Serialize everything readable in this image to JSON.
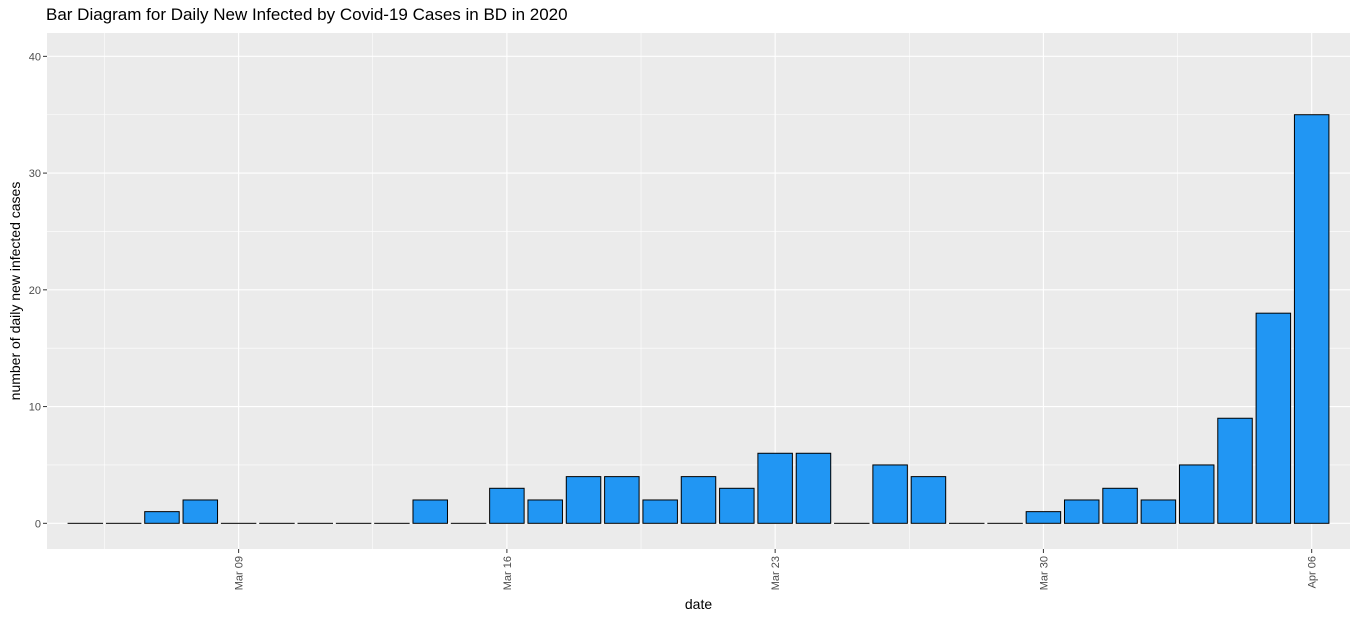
{
  "chart_data": {
    "type": "bar",
    "title": "Bar Diagram for Daily New Infected by Covid-19 Cases in BD in 2020",
    "xlabel": "date",
    "ylabel": "number of daily new infected cases",
    "x": [
      "2020-03-05",
      "2020-03-06",
      "2020-03-07",
      "2020-03-08",
      "2020-03-09",
      "2020-03-10",
      "2020-03-11",
      "2020-03-12",
      "2020-03-13",
      "2020-03-14",
      "2020-03-15",
      "2020-03-16",
      "2020-03-17",
      "2020-03-18",
      "2020-03-19",
      "2020-03-20",
      "2020-03-21",
      "2020-03-22",
      "2020-03-23",
      "2020-03-24",
      "2020-03-25",
      "2020-03-26",
      "2020-03-27",
      "2020-03-28",
      "2020-03-29",
      "2020-03-30",
      "2020-03-31",
      "2020-04-01",
      "2020-04-02",
      "2020-04-03",
      "2020-04-04",
      "2020-04-05",
      "2020-04-06"
    ],
    "values": [
      0,
      0,
      1,
      2,
      0,
      0,
      0,
      0,
      0,
      2,
      0,
      3,
      2,
      4,
      4,
      2,
      4,
      3,
      6,
      6,
      0,
      5,
      4,
      0,
      0,
      1,
      2,
      3,
      2,
      5,
      9,
      18,
      35
    ],
    "ylim": [
      -2.2,
      42
    ],
    "y_ticks": [
      0,
      10,
      20,
      30,
      40
    ],
    "x_ticks": [
      {
        "date": "2020-03-09",
        "label": "Mar 09"
      },
      {
        "date": "2020-03-16",
        "label": "Mar 16"
      },
      {
        "date": "2020-03-23",
        "label": "Mar 23"
      },
      {
        "date": "2020-03-30",
        "label": "Mar 30"
      },
      {
        "date": "2020-04-06",
        "label": "Apr 06"
      }
    ],
    "xlim": [
      "2020-03-04",
      "2020-04-07"
    ],
    "grid": true,
    "colors": {
      "bar_fill": "#2196F3",
      "bar_stroke": "#000000",
      "panel_background": "#EBEBEB",
      "grid": "#FFFFFF"
    }
  }
}
